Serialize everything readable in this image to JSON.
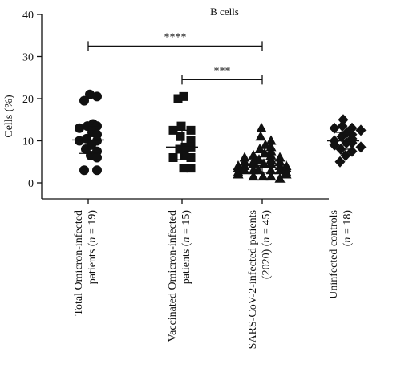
{
  "chart_data": {
    "type": "scatter",
    "title": "B cells",
    "ylabel": "Cells (%)",
    "ylim": [
      0,
      40
    ],
    "yticks": [
      0,
      10,
      20,
      30,
      40
    ],
    "grid": false,
    "groups": [
      {
        "label_lines": [
          [
            {
              "t": "Total Omicron-infected",
              "i": false
            }
          ],
          [
            {
              "t": "patients (",
              "i": false
            },
            {
              "t": "n",
              "i": true
            },
            {
              "t": " = 19)",
              "i": false
            }
          ]
        ],
        "marker": "circle",
        "values": [
          21,
          20.5,
          19.5,
          14,
          13.5,
          13.5,
          13,
          12,
          11.5,
          10.5,
          10,
          10,
          9,
          8,
          7.5,
          6.5,
          6,
          3,
          3
        ],
        "mean": 10.2,
        "sd_upper": 13.5,
        "sd_lower": 7
      },
      {
        "label_lines": [
          [
            {
              "t": "Vaccinated Omicron-infected",
              "i": false
            }
          ],
          [
            {
              "t": "patients (",
              "i": false
            },
            {
              "t": "n",
              "i": true
            },
            {
              "t": " = 15)",
              "i": false
            }
          ]
        ],
        "marker": "square",
        "values": [
          20.5,
          20,
          13.5,
          12.5,
          12.5,
          11,
          10,
          8.5,
          8.5,
          8,
          6.5,
          6,
          6,
          3.5,
          3.5
        ],
        "mean": 8.5,
        "sd_upper": 12.5,
        "sd_lower": 5.5
      },
      {
        "label_lines": [
          [
            {
              "t": "SARS-CoV-2-infected patients",
              "i": false
            }
          ],
          [
            {
              "t": "(2020) (",
              "i": false
            },
            {
              "t": "n",
              "i": true
            },
            {
              "t": " = 45)",
              "i": false
            }
          ]
        ],
        "marker": "triangle",
        "values": [
          13,
          11,
          10,
          9,
          8.5,
          8,
          7.5,
          7,
          6.5,
          6.5,
          6,
          6,
          5.5,
          5.5,
          5,
          5,
          5,
          4.5,
          4.5,
          4.5,
          4,
          4,
          4,
          4,
          3.5,
          3.5,
          3.5,
          3.5,
          3,
          3,
          3,
          3,
          3,
          2.5,
          2.5,
          2.5,
          2.5,
          2,
          2,
          2,
          2,
          1.5,
          1.5,
          1.5,
          1
        ],
        "mean": 4.1,
        "sd_upper": 5.5,
        "sd_lower": 2.5
      },
      {
        "label_lines": [
          [
            {
              "t": "Uninfected controls",
              "i": false
            }
          ],
          [
            {
              "t": "(",
              "i": false
            },
            {
              "t": "n",
              "i": true
            },
            {
              "t": " = 18)",
              "i": false
            }
          ]
        ],
        "marker": "diamond",
        "values": [
          15,
          13.5,
          13,
          13,
          12.5,
          12,
          11.5,
          11,
          10.5,
          10,
          9.5,
          9.5,
          9,
          8.5,
          8,
          7.5,
          6.5,
          5
        ],
        "mean": 10,
        "sd_upper": 12,
        "sd_lower": 8
      }
    ],
    "significance": [
      {
        "from": 0,
        "to": 2,
        "y": 32.5,
        "label": "****"
      },
      {
        "from": 1,
        "to": 2,
        "y": 24.5,
        "label": "***"
      }
    ]
  }
}
